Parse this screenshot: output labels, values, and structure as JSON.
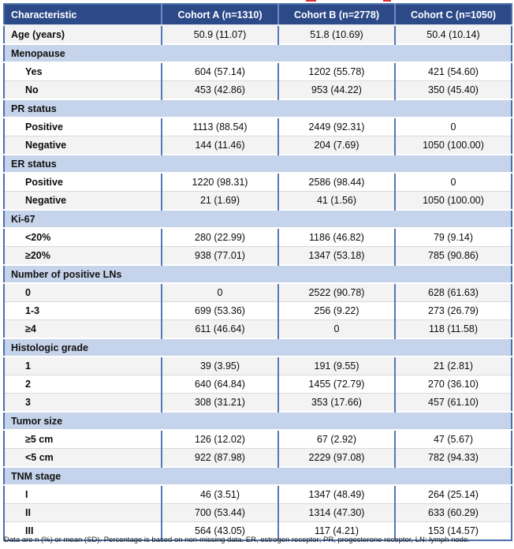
{
  "colors": {
    "header_bg": "#2c4a88",
    "header_text": "#ffffff",
    "section_band_bg": "#c6d4eb",
    "stripe_bg": "#f3f3f4",
    "grid_blue": "#5379b1",
    "remnant_red": "#d93434"
  },
  "table": {
    "columns": [
      "Characteristic",
      "Cohort A (n=1310)",
      "Cohort B (n=2778)",
      "Cohort C (n=1050)"
    ],
    "rows": [
      {
        "type": "data",
        "label": "Age (years)",
        "indent": false,
        "shade": "gray",
        "values": [
          "50.9 (11.07)",
          "51.8 (10.69)",
          "50.4 (10.14)"
        ]
      },
      {
        "type": "section",
        "label": "Menopause"
      },
      {
        "type": "data",
        "label": "Yes",
        "indent": true,
        "shade": "white",
        "values": [
          "604 (57.14)",
          "1202 (55.78)",
          "421 (54.60)"
        ]
      },
      {
        "type": "data",
        "label": "No",
        "indent": true,
        "shade": "gray",
        "values": [
          "453 (42.86)",
          "953 (44.22)",
          "350 (45.40)"
        ]
      },
      {
        "type": "section",
        "label": "PR status"
      },
      {
        "type": "data",
        "label": "Positive",
        "indent": true,
        "shade": "white",
        "values": [
          "1113 (88.54)",
          "2449 (92.31)",
          "0"
        ]
      },
      {
        "type": "data",
        "label": "Negative",
        "indent": true,
        "shade": "gray",
        "values": [
          "144 (11.46)",
          "204 (7.69)",
          "1050 (100.00)"
        ]
      },
      {
        "type": "section",
        "label": "ER status"
      },
      {
        "type": "data",
        "label": "Positive",
        "indent": true,
        "shade": "white",
        "values": [
          "1220 (98.31)",
          "2586 (98.44)",
          "0"
        ]
      },
      {
        "type": "data",
        "label": "Negative",
        "indent": true,
        "shade": "gray",
        "values": [
          "21 (1.69)",
          "41 (1.56)",
          "1050 (100.00)"
        ]
      },
      {
        "type": "section",
        "label": "Ki-67"
      },
      {
        "type": "data",
        "label": "<20%",
        "indent": true,
        "shade": "white",
        "values": [
          "280 (22.99)",
          "1186 (46.82)",
          "79 (9.14)"
        ]
      },
      {
        "type": "data",
        "label": "≥20%",
        "indent": true,
        "shade": "gray",
        "values": [
          "938 (77.01)",
          "1347 (53.18)",
          "785 (90.86)"
        ]
      },
      {
        "type": "section",
        "label": "Number of positive LNs"
      },
      {
        "type": "data",
        "label": "0",
        "indent": true,
        "shade": "gray",
        "values": [
          "0",
          "2522 (90.78)",
          "628 (61.63)"
        ]
      },
      {
        "type": "data",
        "label": "1-3",
        "indent": true,
        "shade": "white",
        "values": [
          "699 (53.36)",
          "256 (9.22)",
          "273 (26.79)"
        ]
      },
      {
        "type": "data",
        "label": "≥4",
        "indent": true,
        "shade": "gray",
        "values": [
          "611 (46.64)",
          "0",
          "118 (11.58)"
        ]
      },
      {
        "type": "section",
        "label": "Histologic grade"
      },
      {
        "type": "data",
        "label": "1",
        "indent": true,
        "shade": "gray",
        "values": [
          "39 (3.95)",
          "191 (9.55)",
          "21 (2.81)"
        ]
      },
      {
        "type": "data",
        "label": "2",
        "indent": true,
        "shade": "white",
        "values": [
          "640 (64.84)",
          "1455 (72.79)",
          "270 (36.10)"
        ]
      },
      {
        "type": "data",
        "label": "3",
        "indent": true,
        "shade": "gray",
        "values": [
          "308 (31.21)",
          "353 (17.66)",
          "457 (61.10)"
        ]
      },
      {
        "type": "section",
        "label": "Tumor size"
      },
      {
        "type": "data",
        "label": "≥5 cm",
        "indent": true,
        "shade": "white",
        "values": [
          "126 (12.02)",
          "67 (2.92)",
          "47 (5.67)"
        ]
      },
      {
        "type": "data",
        "label": "<5 cm",
        "indent": true,
        "shade": "gray",
        "values": [
          "922 (87.98)",
          "2229 (97.08)",
          "782 (94.33)"
        ]
      },
      {
        "type": "section",
        "label": "TNM stage"
      },
      {
        "type": "data",
        "label": "I",
        "indent": true,
        "shade": "white",
        "values": [
          "46 (3.51)",
          "1347 (48.49)",
          "264 (25.14)"
        ]
      },
      {
        "type": "data",
        "label": "II",
        "indent": true,
        "shade": "gray",
        "values": [
          "700 (53.44)",
          "1314 (47.30)",
          "633 (60.29)"
        ]
      },
      {
        "type": "data",
        "label": "III",
        "indent": true,
        "shade": "white",
        "values": [
          "564 (43.05)",
          "117 (4.21)",
          "153 (14.57)"
        ]
      }
    ]
  },
  "footnote": "Data are n (%) or mean (SD). Percentage is based on non-missing data. ER, estrogen receptor; PR, progesterone receptor, LN: lymph node."
}
